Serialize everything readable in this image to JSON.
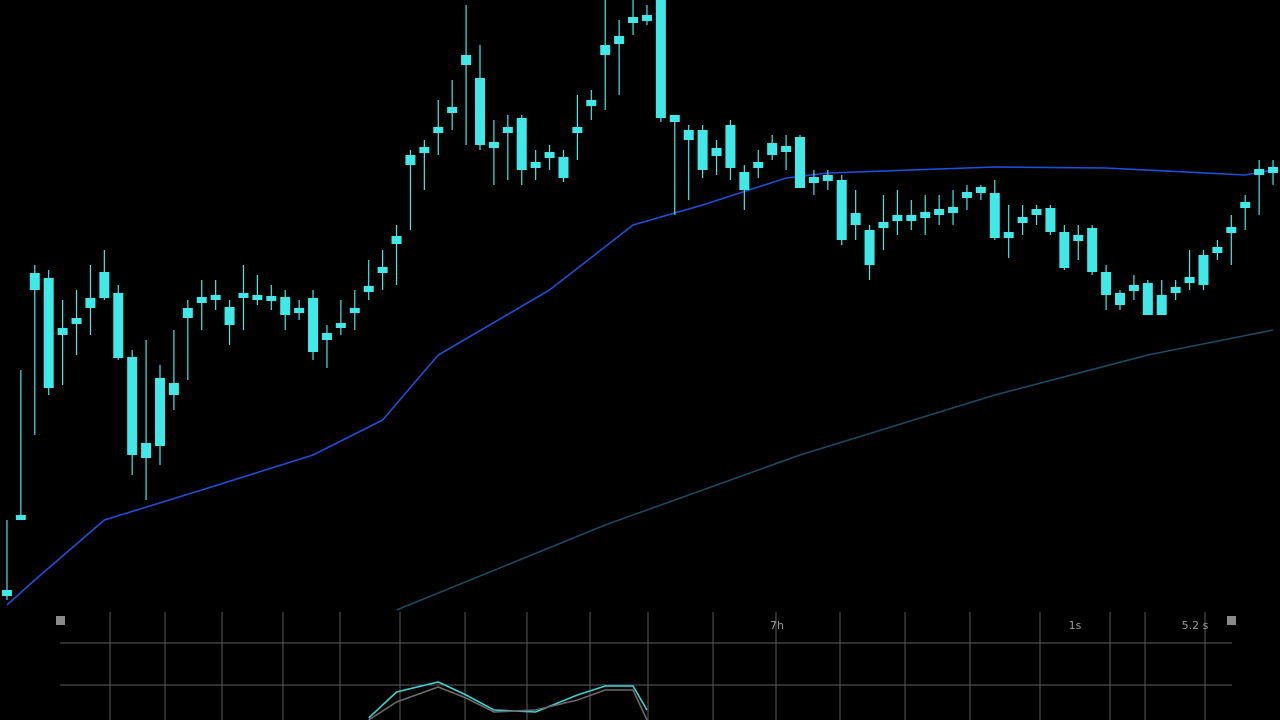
{
  "chart_data": [
    {
      "type": "candlestick",
      "color": "#40e8e8",
      "xlim": [
        -0.5,
        91.5
      ],
      "ylim": [
        0,
        610
      ],
      "open": [
        14,
        90,
        320,
        222,
        275,
        286,
        302,
        312,
        252,
        155,
        152,
        164,
        215,
        292,
        307,
        310,
        285,
        312,
        310,
        309,
        295,
        297,
        258,
        270,
        282,
        297,
        318,
        337,
        366,
        445,
        457,
        477,
        497,
        545,
        465,
        462,
        477,
        440,
        442,
        452,
        432,
        477,
        504,
        555,
        566,
        587,
        589,
        492,
        488,
        470,
        440,
        454,
        442,
        420,
        442,
        455,
        458,
        422,
        427,
        429,
        370,
        385,
        345,
        382,
        389,
        389,
        392,
        395,
        397,
        412,
        417,
        372,
        372,
        387,
        395,
        378,
        342,
        369,
        338,
        315,
        305,
        319,
        295,
        295,
        317,
        327,
        325,
        357,
        377,
        402,
        435,
        437
      ],
      "high": [
        90,
        240,
        345,
        340,
        310,
        320,
        345,
        360,
        325,
        260,
        270,
        245,
        280,
        310,
        330,
        330,
        310,
        345,
        335,
        325,
        320,
        310,
        320,
        285,
        310,
        320,
        350,
        360,
        385,
        460,
        470,
        510,
        530,
        605,
        565,
        490,
        495,
        495,
        460,
        465,
        460,
        515,
        520,
        610,
        590,
        610,
        605,
        610,
        495,
        485,
        485,
        470,
        490,
        445,
        460,
        475,
        475,
        475,
        440,
        440,
        435,
        420,
        385,
        415,
        420,
        410,
        415,
        415,
        420,
        425,
        425,
        430,
        405,
        405,
        405,
        405,
        385,
        385,
        385,
        345,
        320,
        335,
        330,
        330,
        330,
        360,
        360,
        370,
        395,
        415,
        450,
        450
      ],
      "low": [
        10,
        90,
        175,
        215,
        225,
        255,
        275,
        310,
        250,
        135,
        110,
        145,
        200,
        230,
        280,
        300,
        265,
        280,
        305,
        300,
        280,
        290,
        250,
        242,
        275,
        280,
        310,
        320,
        325,
        380,
        420,
        455,
        480,
        465,
        460,
        425,
        430,
        425,
        430,
        440,
        428,
        450,
        490,
        500,
        515,
        575,
        585,
        488,
        395,
        410,
        432,
        435,
        430,
        400,
        432,
        450,
        440,
        422,
        415,
        420,
        365,
        370,
        330,
        360,
        375,
        380,
        375,
        385,
        385,
        400,
        410,
        370,
        352,
        375,
        385,
        375,
        340,
        350,
        335,
        300,
        300,
        310,
        295,
        295,
        310,
        320,
        320,
        350,
        345,
        380,
        395,
        425
      ],
      "close": [
        20,
        95,
        337,
        332,
        282,
        292,
        312,
        338,
        317,
        253,
        167,
        232,
        227,
        302,
        313,
        315,
        303,
        317,
        315,
        314,
        313,
        302,
        312,
        277,
        287,
        302,
        324,
        343,
        374,
        455,
        463,
        483,
        503,
        555,
        532,
        468,
        483,
        492,
        448,
        458,
        453,
        483,
        510,
        565,
        574,
        593,
        595,
        610,
        495,
        480,
        480,
        462,
        485,
        438,
        448,
        467,
        464,
        473,
        433,
        435,
        430,
        397,
        380,
        388,
        395,
        395,
        398,
        401,
        403,
        418,
        423,
        417,
        378,
        393,
        401,
        402,
        378,
        375,
        382,
        338,
        317,
        325,
        327,
        315,
        323,
        333,
        355,
        363,
        383,
        408,
        441,
        443
      ],
      "series": [
        {
          "color": "#1f4fd8",
          "x": [
            0,
            2,
            7,
            14,
            22,
            27,
            31,
            39,
            45,
            50,
            56,
            59,
            71,
            79,
            89,
            91
          ],
          "values": [
            5,
            30,
            90,
            120,
            155,
            190,
            255,
            320,
            385,
            405,
            432,
            437,
            443,
            442,
            435,
            440
          ]
        },
        {
          "color": "#1b4a63",
          "x": [
            28,
            43,
            57,
            71,
            82,
            91
          ],
          "values": [
            0,
            85,
            155,
            215,
            255,
            280
          ]
        }
      ],
      "annotations": [
        "7h",
        "1s",
        "5.2 s"
      ]
    },
    {
      "type": "line",
      "xlim": [
        -0.5,
        91.5
      ],
      "ylim": [
        0,
        80
      ],
      "series": [
        {
          "color": "#3fd0d0",
          "x": [
            26,
            28,
            31,
            33,
            35,
            38,
            41,
            43,
            45,
            46
          ],
          "values": [
            2,
            28,
            38,
            25,
            10,
            8,
            25,
            34,
            34,
            10
          ]
        },
        {
          "color": "#6a6a6a",
          "x": [
            26,
            28,
            31,
            33,
            35,
            38,
            41,
            43,
            45,
            46
          ],
          "values": [
            0,
            18,
            33,
            22,
            8,
            10,
            20,
            30,
            30,
            0
          ]
        }
      ]
    }
  ]
}
